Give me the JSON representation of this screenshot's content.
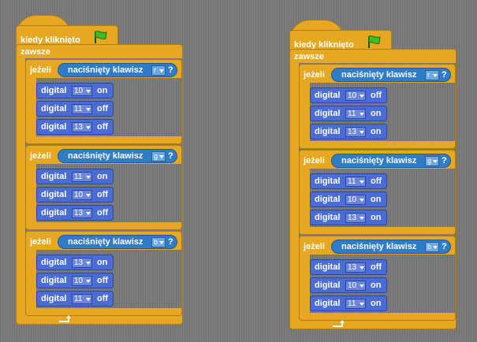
{
  "scripts": [
    {
      "hat": "kiedy kliknięto",
      "forever": "zawsze",
      "ifs": [
        {
          "if_label": "jeżeli",
          "sensor": "naciśnięty klawisz",
          "key": "r",
          "q": "?",
          "cmds": [
            {
              "l": "digital",
              "pin": "10",
              "state": "on"
            },
            {
              "l": "digital",
              "pin": "11",
              "state": "off"
            },
            {
              "l": "digital",
              "pin": "13",
              "state": "off"
            }
          ]
        },
        {
          "if_label": "jeżeli",
          "sensor": "naciśnięty klawisz",
          "key": "g",
          "q": "?",
          "cmds": [
            {
              "l": "digital",
              "pin": "11",
              "state": "on"
            },
            {
              "l": "digital",
              "pin": "10",
              "state": "off"
            },
            {
              "l": "digital",
              "pin": "13",
              "state": "off"
            }
          ]
        },
        {
          "if_label": "jeżeli",
          "sensor": "naciśnięty klawisz",
          "key": "b",
          "q": "?",
          "cmds": [
            {
              "l": "digital",
              "pin": "13",
              "state": "on"
            },
            {
              "l": "digital",
              "pin": "10",
              "state": "off"
            },
            {
              "l": "digital",
              "pin": "11",
              "state": "off"
            }
          ]
        }
      ]
    },
    {
      "hat": "kiedy kliknięto",
      "forever": "zawsze",
      "ifs": [
        {
          "if_label": "jeżeli",
          "sensor": "naciśnięty klawisz",
          "key": "r",
          "q": "?",
          "cmds": [
            {
              "l": "digital",
              "pin": "10",
              "state": "off"
            },
            {
              "l": "digital",
              "pin": "11",
              "state": "on"
            },
            {
              "l": "digital",
              "pin": "13",
              "state": "on"
            }
          ]
        },
        {
          "if_label": "jeżeli",
          "sensor": "naciśnięty klawisz",
          "key": "g",
          "q": "?",
          "cmds": [
            {
              "l": "digital",
              "pin": "11",
              "state": "off"
            },
            {
              "l": "digital",
              "pin": "10",
              "state": "on"
            },
            {
              "l": "digital",
              "pin": "13",
              "state": "on"
            }
          ]
        },
        {
          "if_label": "jeżeli",
          "sensor": "naciśnięty klawisz",
          "key": "b",
          "q": "?",
          "cmds": [
            {
              "l": "digital",
              "pin": "13",
              "state": "off"
            },
            {
              "l": "digital",
              "pin": "10",
              "state": "on"
            },
            {
              "l": "digital",
              "pin": "11",
              "state": "on"
            }
          ]
        }
      ]
    }
  ],
  "icons": {
    "flag": "green-flag-icon",
    "loop": "loop-arrow-icon",
    "dropdown": "dropdown-arrow-icon"
  }
}
